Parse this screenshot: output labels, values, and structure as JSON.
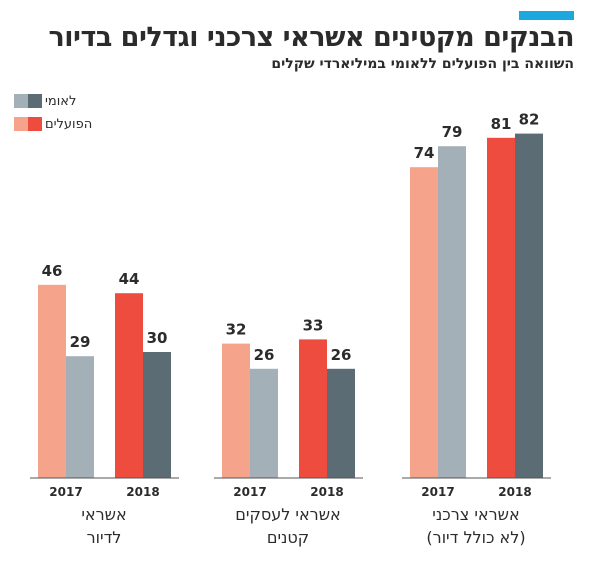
{
  "title": "הבנקים מקטינים אשראי צרכני וגדלים בדיור",
  "subtitle": "השוואה בין הפועלים ללאומי במיליארדי שקלים",
  "colors": {
    "accent": "#1aa8df",
    "hapoalim_2017": "#f5a38a",
    "hapoalim_2018": "#ef4c40",
    "leumi_2017": "#a3b0b8",
    "leumi_2018": "#5b6c75"
  },
  "legend": [
    {
      "label": "לאומי",
      "colors": [
        "#a3b0b8",
        "#5b6c75"
      ]
    },
    {
      "label": "הפועלים",
      "colors": [
        "#f5a38a",
        "#ef4c40"
      ]
    }
  ],
  "chart_data": {
    "type": "bar",
    "title": "הבנקים מקטינים אשראי צרכני וגדלים בדיור",
    "subtitle": "השוואה בין הפועלים ללאומי במיליארדי שקלים",
    "ylim": [
      0,
      82
    ],
    "grid": false,
    "legend_position": "top-left",
    "series": [
      {
        "name": "הפועלים",
        "colors": [
          "#f5a38a",
          "#ef4c40"
        ]
      },
      {
        "name": "לאומי",
        "colors": [
          "#a3b0b8",
          "#5b6c75"
        ]
      }
    ],
    "groups": [
      {
        "label_lines": [
          "אשראי",
          "לדיור"
        ],
        "years": [
          {
            "year": "2017",
            "values": [
              46,
              29
            ]
          },
          {
            "year": "2018",
            "values": [
              44,
              30
            ]
          }
        ]
      },
      {
        "label_lines": [
          "אשראי לעסקים",
          "קטנים"
        ],
        "years": [
          {
            "year": "2017",
            "values": [
              32,
              26
            ]
          },
          {
            "year": "2018",
            "values": [
              33,
              26
            ]
          }
        ]
      },
      {
        "label_lines": [
          "אשראי צרכני",
          "(לא כולל דיור)"
        ],
        "years": [
          {
            "year": "2017",
            "values": [
              74,
              79
            ]
          },
          {
            "year": "2018",
            "values": [
              81,
              82
            ]
          }
        ]
      }
    ]
  }
}
